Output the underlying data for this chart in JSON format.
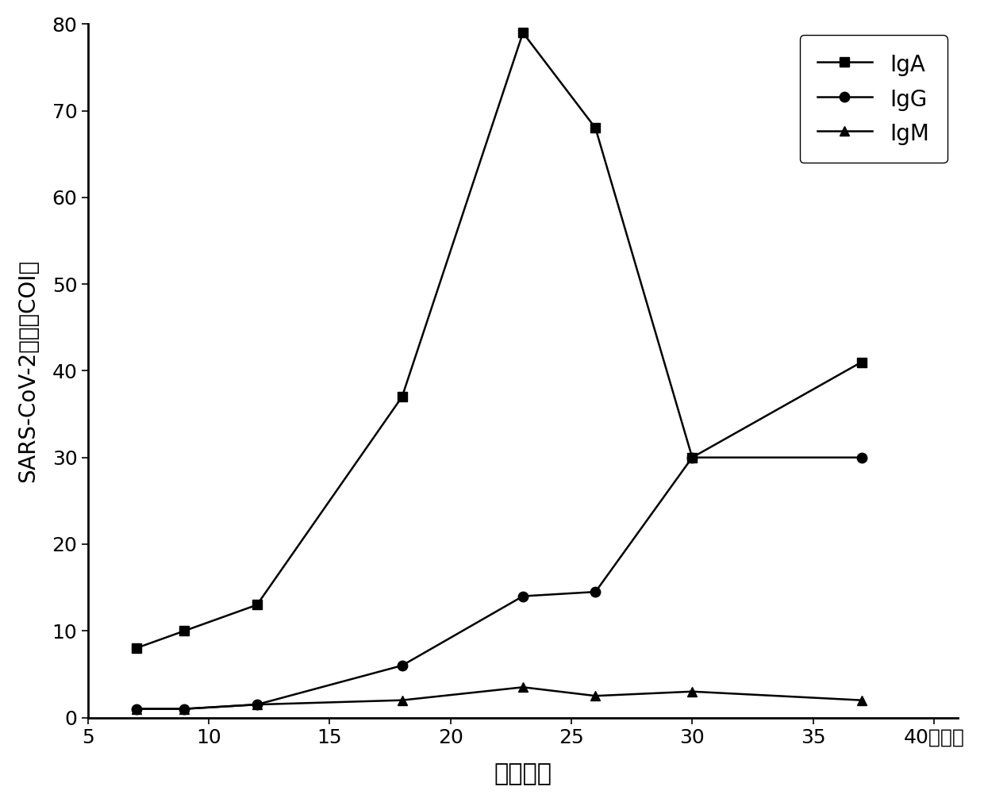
{
  "IgA_x": [
    7,
    9,
    12,
    18,
    23,
    26,
    30,
    37
  ],
  "IgA_y": [
    8,
    10,
    13,
    37,
    79,
    68,
    30,
    41
  ],
  "IgG_x": [
    7,
    9,
    12,
    18,
    23,
    26,
    30,
    37
  ],
  "IgG_y": [
    1,
    1,
    1.5,
    6,
    14,
    14.5,
    30,
    30
  ],
  "IgM_x": [
    7,
    9,
    12,
    18,
    23,
    26,
    30,
    37
  ],
  "IgM_y": [
    1,
    1,
    1.5,
    2,
    3.5,
    2.5,
    3,
    2
  ],
  "xlabel": "发病时间",
  "ylabel": "SARS-CoV-2抗体（COI）",
  "xlim": [
    5,
    41
  ],
  "ylim": [
    0,
    80
  ],
  "xticks": [
    5,
    10,
    15,
    20,
    25,
    30,
    35,
    40
  ],
  "xtick_labels": [
    "5",
    "10",
    "15",
    "20",
    "25",
    "30",
    "35",
    "40（天）"
  ],
  "yticks": [
    0,
    10,
    20,
    30,
    40,
    50,
    60,
    70,
    80
  ],
  "legend_labels": [
    "IgA",
    "IgG",
    "IgM"
  ],
  "line_color": "#000000",
  "background_color": "#ffffff",
  "marker_IgA": "s",
  "marker_IgG": "o",
  "marker_IgM": "^",
  "markersize": 9,
  "linewidth": 1.8
}
